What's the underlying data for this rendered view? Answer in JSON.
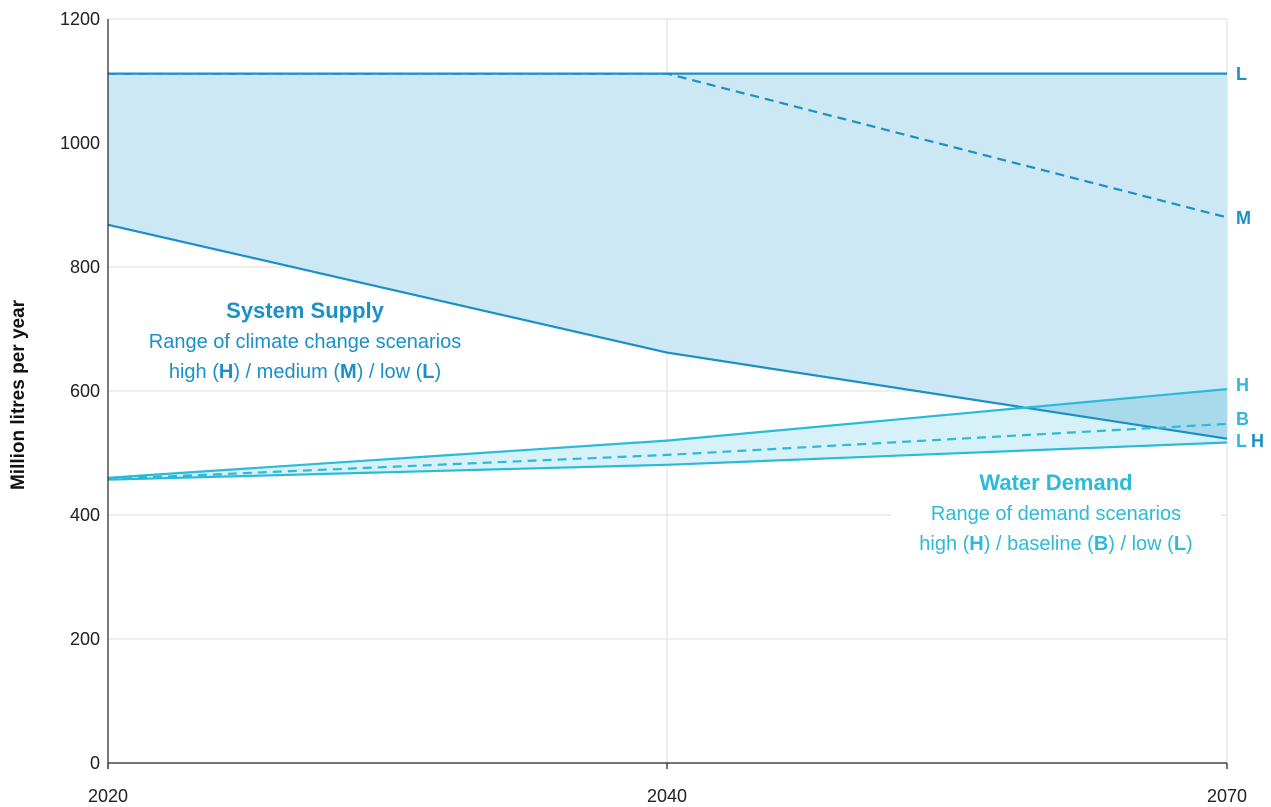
{
  "colors": {
    "supply": "#1a8fc8",
    "supply_fill": "#cce8f4",
    "demand": "#2bbad9",
    "demand_fill": "#d6f1f8",
    "overlap_fill": "#a8daec",
    "grid": "#dddddd",
    "axis": "#222222"
  },
  "chart_data": {
    "type": "area",
    "ylabel": "Million litres per year",
    "xlabel": "",
    "x_ticks": [
      "2020",
      "2040",
      "2070"
    ],
    "y_ticks": [
      "0",
      "200",
      "400",
      "600",
      "800",
      "1000",
      "1200"
    ],
    "xlim": [
      2020,
      2070
    ],
    "ylim": [
      0,
      1200
    ],
    "grid": true,
    "series": [
      {
        "group": "supply",
        "label": "L",
        "style": "solid",
        "x": [
          2020,
          2040,
          2070
        ],
        "y": [
          1112,
          1112,
          1112
        ]
      },
      {
        "group": "supply",
        "label": "M",
        "style": "dashed",
        "x": [
          2020,
          2040,
          2070
        ],
        "y": [
          1112,
          1112,
          880
        ]
      },
      {
        "group": "supply",
        "label": "H",
        "style": "solid",
        "x": [
          2020,
          2040,
          2070
        ],
        "y": [
          868,
          662,
          523
        ]
      },
      {
        "group": "demand",
        "label": "H",
        "style": "solid",
        "x": [
          2020,
          2040,
          2070
        ],
        "y": [
          460,
          520,
          603
        ]
      },
      {
        "group": "demand",
        "label": "B",
        "style": "dashed",
        "x": [
          2020,
          2040,
          2070
        ],
        "y": [
          458,
          497,
          547
        ]
      },
      {
        "group": "demand",
        "label": "L",
        "style": "solid",
        "x": [
          2020,
          2040,
          2070
        ],
        "y": [
          457,
          481,
          517
        ]
      }
    ],
    "annotations": {
      "supply": {
        "title": "System Supply",
        "line1": "Range of climate change scenarios",
        "line2": [
          {
            "t": "high (",
            "b": false
          },
          {
            "t": "H",
            "b": true
          },
          {
            "t": ") / medium (",
            "b": false
          },
          {
            "t": "M",
            "b": true
          },
          {
            "t": ") / low (",
            "b": false
          },
          {
            "t": "L",
            "b": true
          },
          {
            "t": ")",
            "b": false
          }
        ]
      },
      "demand": {
        "title": "Water Demand",
        "line1": "Range of demand scenarios",
        "line2": [
          {
            "t": "high (",
            "b": false
          },
          {
            "t": "H",
            "b": true
          },
          {
            "t": ") / baseline (",
            "b": false
          },
          {
            "t": "B",
            "b": true
          },
          {
            "t": ") / low (",
            "b": false
          },
          {
            "t": "L",
            "b": true
          },
          {
            "t": ")",
            "b": false
          }
        ]
      }
    }
  }
}
